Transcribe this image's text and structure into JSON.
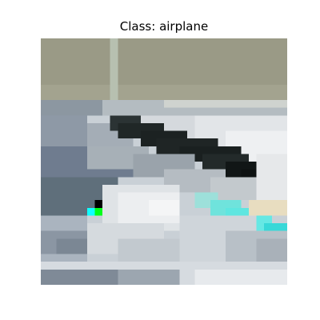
{
  "figure": {
    "title": "Class: airplane"
  },
  "image": {
    "subject": "airplane",
    "icon": "pixelated-airplane-photo",
    "dominant_colors": {
      "sky": "#9a9a86",
      "fuselage_light": "#d8dde3",
      "fuselage_mid": "#a8b2bc",
      "shadow_blue": "#6f7c8f",
      "dark_stripe": "#1f2525",
      "cyan_stripe": "#5fe6e0",
      "marker_black": "#000000",
      "marker_green": "#00ff19",
      "marker_cyan": "#10ffff"
    }
  }
}
